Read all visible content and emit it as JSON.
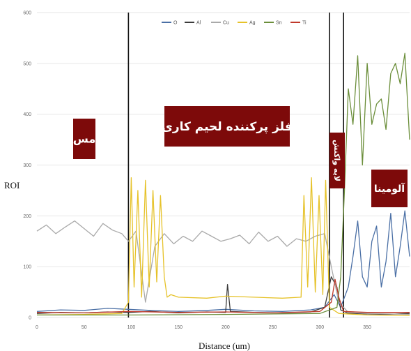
{
  "chart_data": {
    "type": "line",
    "xlabel": "Distance (um)",
    "ylabel": "ROI",
    "xlim": [
      0,
      395
    ],
    "ylim": [
      0,
      600
    ],
    "x_ticks": [
      0,
      50,
      100,
      150,
      200,
      250,
      300,
      350
    ],
    "y_ticks": [
      0,
      100,
      200,
      300,
      400,
      500,
      600
    ],
    "grid": "horizontal",
    "legend_position": "top-center",
    "legend": [
      {
        "name": "O",
        "color": "#4a6fa5"
      },
      {
        "name": "Al",
        "color": "#3b3b3b"
      },
      {
        "name": "Cu",
        "color": "#a9a9a9"
      },
      {
        "name": "Ag",
        "color": "#e6c229"
      },
      {
        "name": "Sn",
        "color": "#6b8e3a"
      },
      {
        "name": "Ti",
        "color": "#c0392b"
      }
    ],
    "boundaries_x": [
      97,
      310,
      325
    ],
    "regions": [
      {
        "label": "مس",
        "x": 50,
        "y": 355
      },
      {
        "label": "فلز پرکننده لحیم کاری",
        "x": 200,
        "y": 375
      },
      {
        "label": "لایه واکنش",
        "x": 317,
        "y": 330
      },
      {
        "label": "آلومینا",
        "x": 365,
        "y": 250
      }
    ],
    "series": [
      {
        "name": "O",
        "color": "#4a6fa5",
        "x": [
          0,
          25,
          50,
          75,
          97,
          120,
          150,
          180,
          200,
          230,
          260,
          290,
          305,
          315,
          322,
          330,
          335,
          340,
          345,
          350,
          355,
          360,
          365,
          370,
          375,
          380,
          385,
          390,
          395
        ],
        "values": [
          12,
          15,
          14,
          18,
          16,
          14,
          12,
          14,
          16,
          13,
          12,
          15,
          20,
          45,
          20,
          60,
          120,
          190,
          80,
          60,
          150,
          180,
          60,
          110,
          205,
          80,
          140,
          210,
          120
        ]
      },
      {
        "name": "Al",
        "color": "#3b3b3b",
        "x": [
          0,
          25,
          50,
          75,
          97,
          120,
          150,
          180,
          200,
          202,
          205,
          230,
          260,
          290,
          305,
          312,
          318,
          322,
          330,
          350,
          370,
          395
        ],
        "values": [
          8,
          10,
          9,
          11,
          10,
          12,
          9,
          11,
          10,
          65,
          12,
          10,
          9,
          11,
          20,
          80,
          60,
          15,
          8,
          7,
          6,
          8
        ]
      },
      {
        "name": "Cu",
        "color": "#a9a9a9",
        "x": [
          0,
          10,
          20,
          30,
          40,
          50,
          60,
          70,
          80,
          90,
          97,
          105,
          115,
          125,
          135,
          145,
          155,
          165,
          175,
          185,
          195,
          205,
          215,
          225,
          235,
          245,
          255,
          265,
          275,
          285,
          295,
          305,
          312,
          320,
          330,
          350,
          395
        ],
        "values": [
          170,
          182,
          165,
          178,
          190,
          175,
          160,
          185,
          172,
          165,
          150,
          170,
          30,
          140,
          165,
          145,
          160,
          150,
          170,
          160,
          150,
          155,
          162,
          145,
          168,
          150,
          160,
          140,
          155,
          150,
          160,
          165,
          100,
          30,
          10,
          8,
          6
        ]
      },
      {
        "name": "Ag",
        "color": "#e6c229",
        "x": [
          0,
          50,
          90,
          97,
          100,
          103,
          107,
          111,
          115,
          119,
          123,
          127,
          131,
          135,
          138,
          142,
          150,
          180,
          200,
          230,
          260,
          280,
          283,
          287,
          291,
          295,
          299,
          303,
          306,
          310,
          320,
          350,
          395
        ],
        "values": [
          5,
          6,
          8,
          30,
          275,
          60,
          250,
          40,
          270,
          60,
          250,
          70,
          240,
          80,
          40,
          45,
          40,
          38,
          42,
          40,
          38,
          40,
          240,
          60,
          275,
          50,
          240,
          45,
          270,
          20,
          8,
          5,
          4
        ]
      },
      {
        "name": "Sn",
        "color": "#6b8e3a",
        "x": [
          0,
          100,
          200,
          300,
          318,
          322,
          326,
          330,
          335,
          340,
          345,
          350,
          355,
          360,
          365,
          370,
          375,
          380,
          385,
          390,
          395
        ],
        "values": [
          5,
          5,
          6,
          8,
          20,
          80,
          250,
          450,
          380,
          515,
          300,
          500,
          380,
          420,
          430,
          370,
          480,
          500,
          460,
          520,
          350
        ]
      },
      {
        "name": "Ti",
        "color": "#c0392b",
        "x": [
          0,
          50,
          97,
          150,
          200,
          250,
          300,
          312,
          316,
          320,
          325,
          350,
          395
        ],
        "values": [
          10,
          9,
          12,
          10,
          11,
          9,
          12,
          30,
          75,
          40,
          12,
          10,
          10
        ]
      }
    ]
  }
}
